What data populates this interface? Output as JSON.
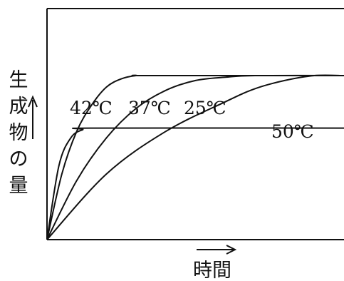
{
  "chart_data": {
    "type": "line",
    "title": "",
    "xlabel": "時間",
    "ylabel": "生成物の量",
    "xlim": [
      0,
      100
    ],
    "ylim": [
      0,
      100
    ],
    "grid": false,
    "series": [
      {
        "name": "42℃",
        "curve": "saturating",
        "x": [
          0,
          5,
          10,
          15,
          20,
          25,
          30,
          35,
          100
        ],
        "y": [
          0,
          40,
          66,
          82,
          93,
          98,
          100,
          100,
          100
        ]
      },
      {
        "name": "37℃",
        "curve": "saturating",
        "x": [
          0,
          10,
          20,
          30,
          40,
          50,
          60,
          70,
          100
        ],
        "y": [
          0,
          36,
          62,
          80,
          91,
          97,
          99,
          100,
          100
        ]
      },
      {
        "name": "25℃",
        "curve": "saturating",
        "x": [
          0,
          20,
          40,
          60,
          70,
          80,
          90,
          100
        ],
        "y": [
          0,
          40,
          66,
          84,
          92,
          97,
          100,
          100
        ]
      },
      {
        "name": "50℃",
        "curve": "plateau",
        "x": [
          0,
          4,
          8,
          12,
          16,
          100
        ],
        "y": [
          0,
          45,
          62,
          67,
          68,
          68
        ]
      }
    ]
  }
}
